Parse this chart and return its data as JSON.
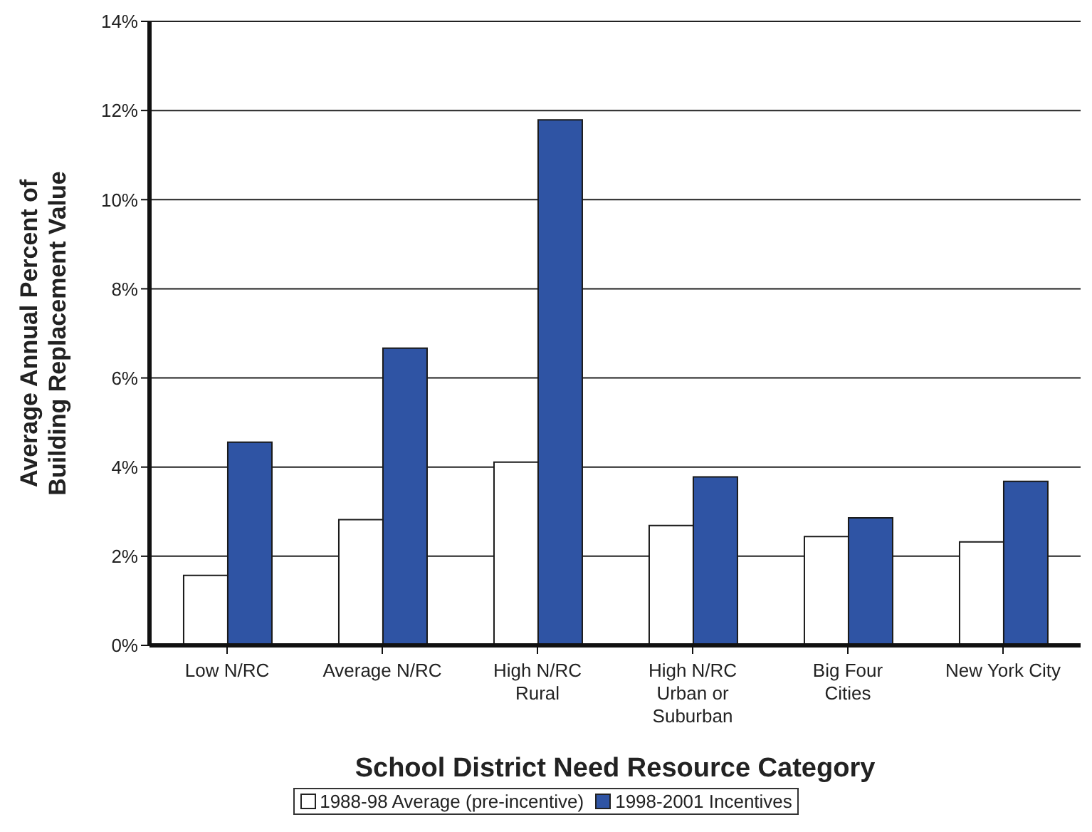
{
  "chart_data": {
    "type": "bar",
    "xlabel": "School District Need Resource Category",
    "ylabel": "Average Annual Percent of Building Replacement Value",
    "categories": [
      "Low N/RC",
      "Average N/RC",
      "High N/RC Rural",
      "High N/RC Urban or Suburban",
      "Big Four Cities",
      "New York City"
    ],
    "series": [
      {
        "name": "1988-98 Average (pre-incentive)",
        "color": "#ffffff",
        "values": [
          1.57,
          2.82,
          4.11,
          2.69,
          2.44,
          2.32
        ]
      },
      {
        "name": "1998-2001 Incentives",
        "color": "#2f54a4",
        "values": [
          4.56,
          6.67,
          11.79,
          3.78,
          2.86,
          3.68
        ]
      }
    ],
    "ylim": [
      0,
      14
    ],
    "yticks": [
      {
        "value": 0,
        "label": "0%"
      },
      {
        "value": 2,
        "label": "2%"
      },
      {
        "value": 4,
        "label": "4%"
      },
      {
        "value": 6,
        "label": "6%"
      },
      {
        "value": 8,
        "label": "8%"
      },
      {
        "value": 10,
        "label": "10%"
      },
      {
        "value": 12,
        "label": "12%"
      },
      {
        "value": 14,
        "label": "14%"
      }
    ],
    "grid": "y",
    "legend": "bottom"
  }
}
